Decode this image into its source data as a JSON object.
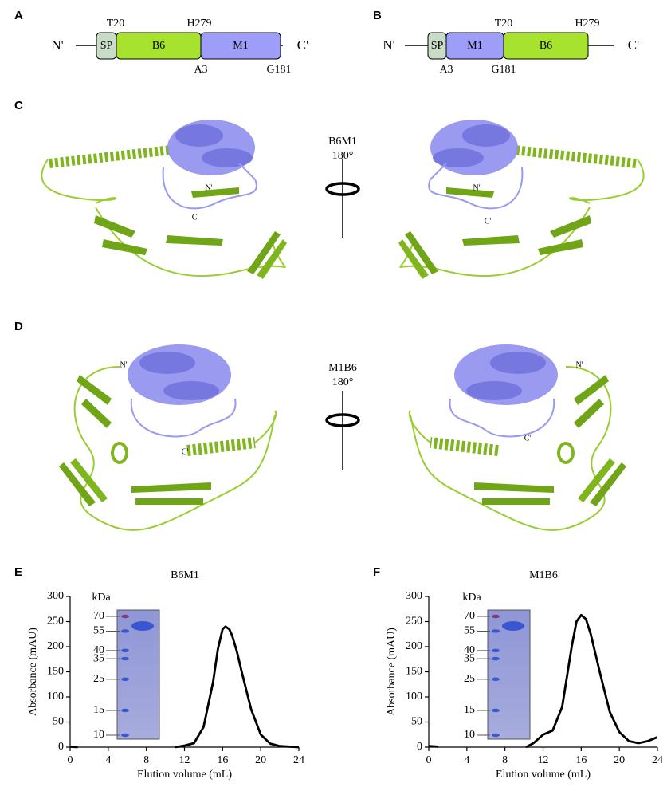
{
  "panel_labels": [
    "A",
    "B",
    "C",
    "D",
    "E",
    "F"
  ],
  "constructs": [
    {
      "n_term": "N'",
      "c_term": "C'",
      "domains": [
        "SP",
        "B6",
        "M1"
      ],
      "top_labels": [
        "T20",
        "H279"
      ],
      "bottom_labels": [
        "A3",
        "G181"
      ]
    },
    {
      "n_term": "N'",
      "c_term": "C'",
      "domains": [
        "SP",
        "M1",
        "B6"
      ],
      "top_labels": [
        "T20",
        "H279"
      ],
      "bottom_labels": [
        "A3",
        "G181"
      ]
    }
  ],
  "structures": [
    {
      "title": "B6M1",
      "rotation": "180°",
      "n_label": "N'",
      "c_label": "C'"
    },
    {
      "title": "M1B6",
      "rotation": "180°",
      "n_label": "N'",
      "c_label": "C'"
    }
  ],
  "chart_data": [
    {
      "type": "line",
      "title": "B6M1",
      "xlabel": "Elution volume (mL)",
      "ylabel": "Absorbance (mAU)",
      "xlim": [
        0,
        24
      ],
      "xticks": [
        0,
        4,
        8,
        12,
        16,
        20,
        24
      ],
      "ylim": [
        0,
        300
      ],
      "yticks": [
        0,
        50,
        100,
        150,
        200,
        250,
        300
      ],
      "color": "#000000",
      "x": [
        0,
        0.8,
        5,
        11,
        12,
        13,
        14,
        15,
        15.5,
        16,
        16.3,
        16.7,
        17,
        17.5,
        18,
        19,
        20,
        21,
        22,
        24
      ],
      "values": [
        1,
        0,
        null,
        0,
        3,
        8,
        40,
        130,
        195,
        235,
        240,
        235,
        222,
        190,
        150,
        75,
        25,
        7,
        2,
        0
      ],
      "gel": {
        "unit": "kDa",
        "markers": [
          70,
          55,
          40,
          35,
          25,
          15,
          10
        ]
      }
    },
    {
      "type": "line",
      "title": "M1B6",
      "xlabel": "Elution volume (mL)",
      "ylabel": "Absorbance (mAU)",
      "xlim": [
        0,
        24
      ],
      "xticks": [
        0,
        4,
        8,
        12,
        16,
        20,
        24
      ],
      "ylim": [
        0,
        300
      ],
      "yticks": [
        0,
        50,
        100,
        150,
        200,
        250,
        300
      ],
      "color": "#000000",
      "x": [
        0,
        1,
        5,
        10.2,
        11,
        12,
        13,
        14,
        15,
        15.5,
        16,
        16.5,
        17,
        18,
        19,
        20,
        21,
        22,
        23,
        24
      ],
      "values": [
        2,
        1,
        null,
        0,
        8,
        25,
        33,
        80,
        200,
        250,
        263,
        255,
        225,
        145,
        70,
        30,
        12,
        8,
        12,
        20
      ],
      "gel": {
        "unit": "kDa",
        "markers": [
          70,
          55,
          40,
          35,
          25,
          15,
          10
        ]
      }
    }
  ]
}
